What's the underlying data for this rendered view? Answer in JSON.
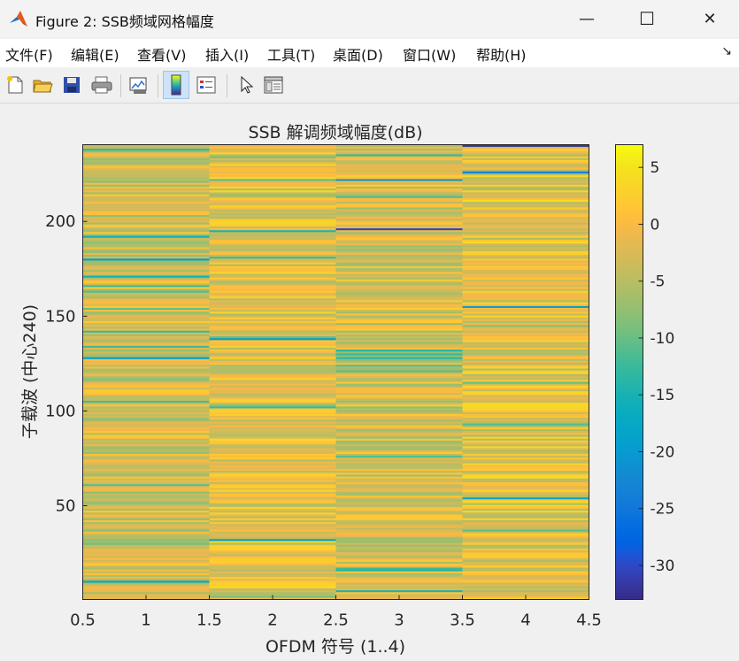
{
  "window": {
    "title": "Figure 2: SSB频域网格幅度",
    "minimize": "—",
    "maximize": "☐",
    "close": "✕"
  },
  "menu": [
    "文件(F)",
    "编辑(E)",
    "查看(V)",
    "插入(I)",
    "工具(T)",
    "桌面(D)",
    "窗口(W)",
    "帮助(H)"
  ],
  "toolbar": {
    "icons": [
      "new-figure-icon",
      "open-file-icon",
      "save-icon",
      "print-icon",
      "link-plot-icon",
      "insert-colorbar-icon",
      "insert-legend-icon",
      "edit-plot-arrow-icon",
      "property-inspector-icon"
    ],
    "active": "insert-colorbar-icon"
  },
  "chart_data": {
    "type": "heatmap",
    "title": "SSB 解调频域幅度(dB)",
    "xlabel": "OFDM 符号 (1..4)",
    "ylabel": "子载波 (中心240)",
    "x": [
      1,
      2,
      3,
      4
    ],
    "y_count": 240,
    "xlim": [
      0.5,
      4.5
    ],
    "ylim": [
      0.5,
      240.5
    ],
    "xticks": [
      "0.5",
      "1",
      "1.5",
      "2",
      "2.5",
      "3",
      "3.5",
      "4",
      "4.5"
    ],
    "yticks": [
      "50",
      "100",
      "150",
      "200"
    ],
    "colorbar": {
      "colormap": "parula",
      "clim": [
        -33,
        7
      ],
      "ticks": [
        "5",
        "0",
        "-5",
        "-10",
        "-15",
        "-20",
        "-25",
        "-30"
      ]
    },
    "low_outliers_dB": [
      {
        "symbol": 1,
        "subcarrier": 180,
        "value": -20
      },
      {
        "symbol": 1,
        "subcarrier": 128,
        "value": -19
      },
      {
        "symbol": 1,
        "subcarrier": 10,
        "value": -18
      },
      {
        "symbol": 2,
        "subcarrier": 138,
        "value": -20
      },
      {
        "symbol": 2,
        "subcarrier": 32,
        "value": -19
      },
      {
        "symbol": 3,
        "subcarrier": 196,
        "value": -30
      },
      {
        "symbol": 3,
        "subcarrier": 222,
        "value": -20
      },
      {
        "symbol": 3,
        "subcarrier": 5,
        "value": -15
      },
      {
        "symbol": 4,
        "subcarrier": 240,
        "value": -32
      },
      {
        "symbol": 4,
        "subcarrier": 226,
        "value": -24
      },
      {
        "symbol": 4,
        "subcarrier": 155,
        "value": -19
      },
      {
        "symbol": 4,
        "subcarrier": 54,
        "value": -18
      }
    ]
  }
}
